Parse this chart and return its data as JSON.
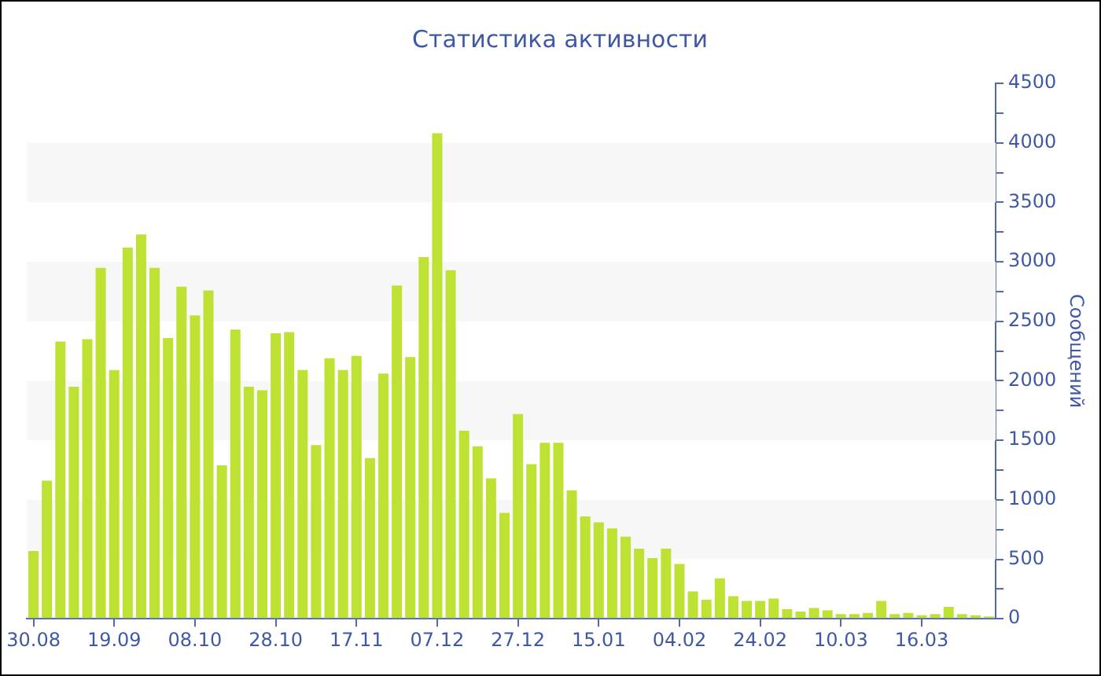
{
  "chart_data": {
    "type": "bar",
    "title": "Статистика активности",
    "ylabel": "Сообщений",
    "categories": [
      "30.08",
      null,
      null,
      null,
      null,
      null,
      "19.09",
      null,
      null,
      null,
      null,
      null,
      "08.10",
      null,
      null,
      null,
      null,
      null,
      "28.10",
      null,
      null,
      null,
      null,
      null,
      "17.11",
      null,
      null,
      null,
      null,
      null,
      "07.12",
      null,
      null,
      null,
      null,
      null,
      "27.12",
      null,
      null,
      null,
      null,
      null,
      "15.01",
      null,
      null,
      null,
      null,
      null,
      "04.02",
      null,
      null,
      null,
      null,
      null,
      "24.02",
      null,
      null,
      null,
      null,
      null,
      "10.03",
      null,
      null,
      null,
      null,
      null,
      "16.03",
      null,
      null,
      null,
      null,
      null
    ],
    "values": [
      570,
      1160,
      2330,
      1950,
      2350,
      2950,
      2090,
      3120,
      3230,
      2950,
      2360,
      2790,
      2550,
      2760,
      1290,
      2430,
      1950,
      1920,
      2400,
      2410,
      2090,
      1460,
      2190,
      2090,
      2210,
      1350,
      2060,
      2800,
      2200,
      3040,
      4080,
      2930,
      1580,
      1450,
      1180,
      890,
      1720,
      1300,
      1480,
      1480,
      1080,
      860,
      810,
      760,
      690,
      590,
      510,
      590,
      460,
      230,
      160,
      340,
      190,
      150,
      150,
      170,
      80,
      60,
      90,
      70,
      40,
      40,
      50,
      150,
      40,
      50,
      30,
      40,
      100,
      40,
      30,
      20
    ],
    "color": "#bde234",
    "ylim": [
      0,
      4500
    ],
    "yticks": [
      0,
      {
        "value": 250,
        "label": null
      },
      500,
      {
        "value": 750,
        "label": null
      },
      1000,
      {
        "value": 1250,
        "label": null
      },
      1500,
      {
        "value": 1750,
        "label": null
      },
      2000,
      {
        "value": 2250,
        "label": null
      },
      2500,
      {
        "value": 2750,
        "label": null
      },
      3000,
      {
        "value": 3250,
        "label": null
      },
      3500,
      {
        "value": 3750,
        "label": null
      },
      4000,
      {
        "value": 4250,
        "label": null
      },
      4500
    ],
    "bands": [
      {
        "axis": "y",
        "from": 500,
        "to": 1000,
        "color": "#f7f7f7"
      },
      {
        "axis": "y",
        "from": 1500,
        "to": 2000,
        "color": "#f7f7f7"
      },
      {
        "axis": "y",
        "from": 2500,
        "to": 3000,
        "color": "#f7f7f7"
      },
      {
        "axis": "y",
        "from": 3500,
        "to": 4000,
        "color": "#f7f7f7"
      }
    ]
  }
}
